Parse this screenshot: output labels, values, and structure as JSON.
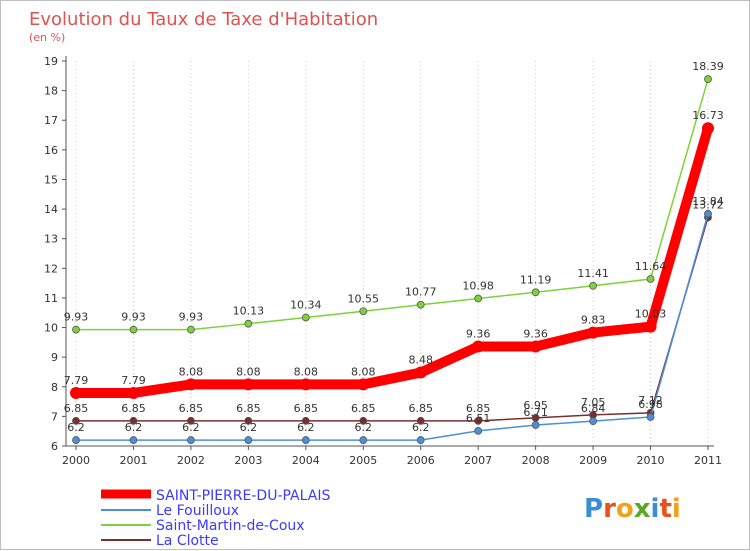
{
  "chart_data": {
    "type": "line",
    "title": "Evolution du Taux de Taxe d'Habitation",
    "subtitle": "(en %)",
    "xlabel": "",
    "ylabel": "",
    "ylim": [
      6,
      19
    ],
    "yticks": [
      "6",
      "7",
      "8",
      "9",
      "10",
      "11",
      "12",
      "13",
      "14",
      "15",
      "16",
      "17",
      "18",
      "19"
    ],
    "x": [
      "2000",
      "2001",
      "2002",
      "2003",
      "2004",
      "2005",
      "2006",
      "2007",
      "2008",
      "2009",
      "2010",
      "2011"
    ],
    "grid": "dotted vertical",
    "legend_position": "bottom-left",
    "series": [
      {
        "name": "SAINT-PIERRE-DU-PALAIS",
        "color": "#ff0000",
        "values": [
          7.79,
          7.79,
          8.08,
          8.08,
          8.08,
          8.08,
          8.48,
          9.36,
          9.36,
          9.83,
          10.03,
          16.73
        ],
        "labels": [
          "7.79",
          "7.79",
          "8.08",
          "8.08",
          "8.08",
          "8.08",
          "8.48",
          "9.36",
          "9.36",
          "9.83",
          "10.03",
          "16.73"
        ]
      },
      {
        "name": "Le Fouilloux",
        "color": "#4a90d9",
        "values": [
          6.2,
          6.2,
          6.2,
          6.2,
          6.2,
          6.2,
          6.2,
          6.51,
          6.71,
          6.84,
          6.98,
          13.84
        ],
        "labels": [
          "6.2",
          "6.2",
          "6.2",
          "6.2",
          "6.2",
          "6.2",
          "6.2",
          "6.51",
          "6.71",
          "6.84",
          "6.98",
          "13.84"
        ]
      },
      {
        "name": "Saint-Martin-de-Coux",
        "color": "#7fd13b",
        "values": [
          9.93,
          9.93,
          9.93,
          10.13,
          10.34,
          10.55,
          10.77,
          10.98,
          11.19,
          11.41,
          11.64,
          18.39
        ],
        "labels": [
          "9.93",
          "9.93",
          "9.93",
          "10.13",
          "10.34",
          "10.55",
          "10.77",
          "10.98",
          "11.19",
          "11.41",
          "11.64",
          "18.39"
        ]
      },
      {
        "name": "La Clotte",
        "color": "#7a2e2e",
        "values": [
          6.85,
          6.85,
          6.85,
          6.85,
          6.85,
          6.85,
          6.85,
          6.85,
          6.95,
          7.05,
          7.12,
          13.72
        ],
        "labels": [
          "6.85",
          "6.85",
          "6.85",
          "6.85",
          "6.85",
          "6.85",
          "6.85",
          "6.85",
          "6.95",
          "7.05",
          "7.12",
          "13.72"
        ]
      }
    ]
  },
  "logo": {
    "text": "Proxiti"
  }
}
